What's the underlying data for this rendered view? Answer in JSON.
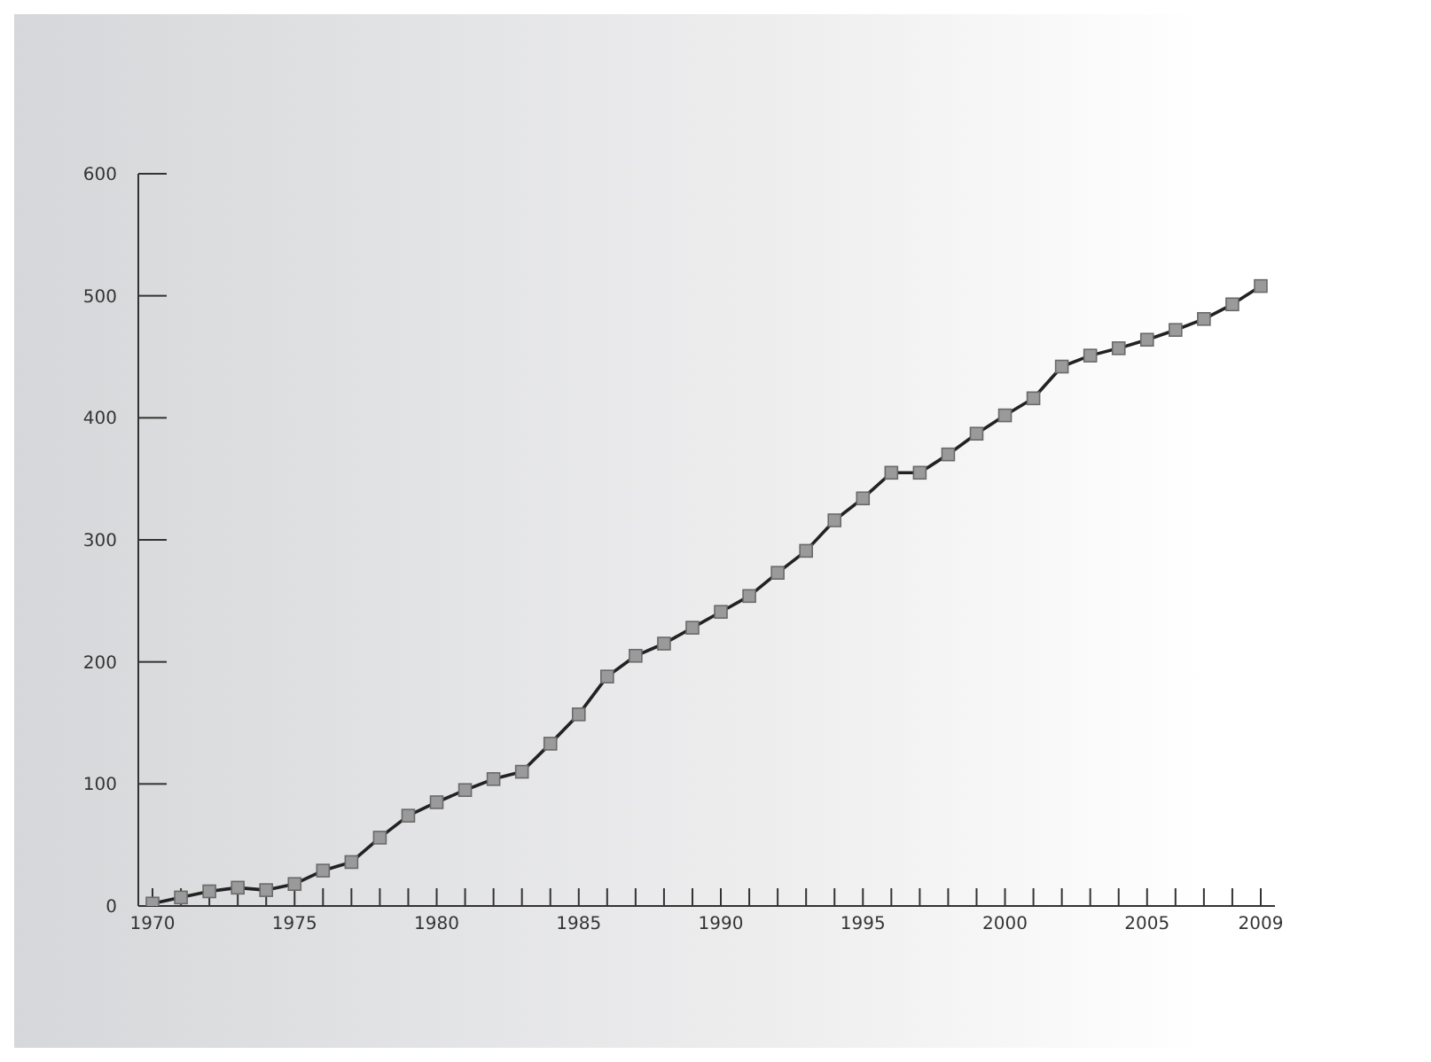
{
  "chart_data": {
    "type": "line",
    "x": [
      1970,
      1971,
      1972,
      1973,
      1974,
      1975,
      1976,
      1977,
      1978,
      1979,
      1980,
      1981,
      1982,
      1983,
      1984,
      1985,
      1986,
      1987,
      1988,
      1989,
      1990,
      1991,
      1992,
      1993,
      1994,
      1995,
      1996,
      1997,
      1998,
      1999,
      2000,
      2001,
      2002,
      2003,
      2004,
      2005,
      2006,
      2007,
      2008,
      2009
    ],
    "series": [
      {
        "color": "#222222",
        "values": [
          2,
          7,
          12,
          15,
          13,
          18,
          29,
          36,
          56,
          74,
          85,
          95,
          104,
          110,
          133,
          157,
          188,
          205,
          215,
          228,
          241,
          254,
          273,
          291,
          316,
          334,
          355,
          355,
          370,
          387,
          402,
          416,
          442,
          451,
          457,
          464,
          472,
          481,
          493,
          508
        ]
      }
    ],
    "xlim": [
      1969.5,
      2009.5
    ],
    "xticks": [
      1970,
      {
        "value": 1971,
        "label": null
      },
      {
        "value": 1972,
        "label": null
      },
      {
        "value": 1973,
        "label": null
      },
      {
        "value": 1974,
        "label": null
      },
      1975,
      {
        "value": 1976,
        "label": null
      },
      {
        "value": 1977,
        "label": null
      },
      {
        "value": 1978,
        "label": null
      },
      {
        "value": 1979,
        "label": null
      },
      1980,
      {
        "value": 1981,
        "label": null
      },
      {
        "value": 1982,
        "label": null
      },
      {
        "value": 1983,
        "label": null
      },
      {
        "value": 1984,
        "label": null
      },
      1985,
      {
        "value": 1986,
        "label": null
      },
      {
        "value": 1987,
        "label": null
      },
      {
        "value": 1988,
        "label": null
      },
      {
        "value": 1989,
        "label": null
      },
      1990,
      {
        "value": 1991,
        "label": null
      },
      {
        "value": 1992,
        "label": null
      },
      {
        "value": 1993,
        "label": null
      },
      {
        "value": 1994,
        "label": null
      },
      1995,
      {
        "value": 1996,
        "label": null
      },
      {
        "value": 1997,
        "label": null
      },
      {
        "value": 1998,
        "label": null
      },
      {
        "value": 1999,
        "label": null
      },
      2000,
      {
        "value": 2001,
        "label": null
      },
      {
        "value": 2002,
        "label": null
      },
      {
        "value": 2003,
        "label": null
      },
      {
        "value": 2004,
        "label": null
      },
      2005,
      {
        "value": 2006,
        "label": null
      },
      {
        "value": 2007,
        "label": null
      },
      {
        "value": 2008,
        "label": null
      },
      2009
    ],
    "ylim": [
      0,
      600
    ],
    "yticks": [
      0,
      100,
      200,
      300,
      400,
      500,
      600
    ],
    "grid": false,
    "legend": false,
    "marker": "square",
    "line_style": "solid"
  }
}
